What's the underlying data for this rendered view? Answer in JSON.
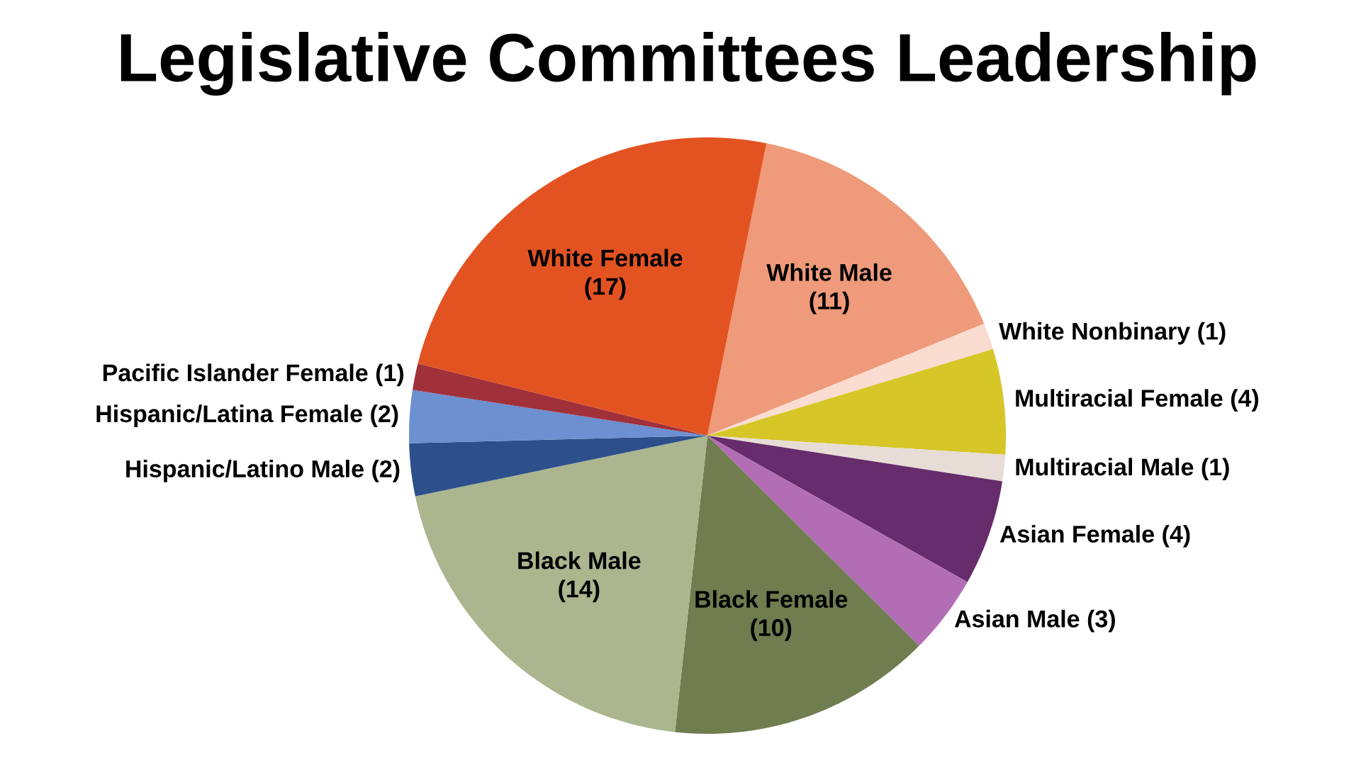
{
  "chart_data": {
    "type": "pie",
    "title": "Legislative Committees Leadership",
    "categories": [
      "White Male",
      "White Nonbinary",
      "Multiracial Female",
      "Multiracial Male",
      "Asian Female",
      "Asian Male",
      "Black Female",
      "Black Male",
      "Hispanic/Latino Male",
      "Hispanic/Latina Female",
      "Pacific Islander Female",
      "White Female"
    ],
    "values": [
      11,
      1,
      4,
      1,
      4,
      3,
      10,
      14,
      2,
      2,
      1,
      17
    ],
    "value_labels": [
      "(11)",
      "(1)",
      "(4)",
      "(1)",
      "(4)",
      "(3)",
      "(10)",
      "(14)",
      "(2)",
      "(2)",
      "(1)",
      "(17)"
    ],
    "colors": [
      "#ef9a7a",
      "#fadcd0",
      "#d6c628",
      "#e8ddd6",
      "#662c6b",
      "#b36db5",
      "#6f7d4f",
      "#abb68f",
      "#2d4f8c",
      "#6c90d0",
      "#a0303a",
      "#e35322"
    ]
  }
}
